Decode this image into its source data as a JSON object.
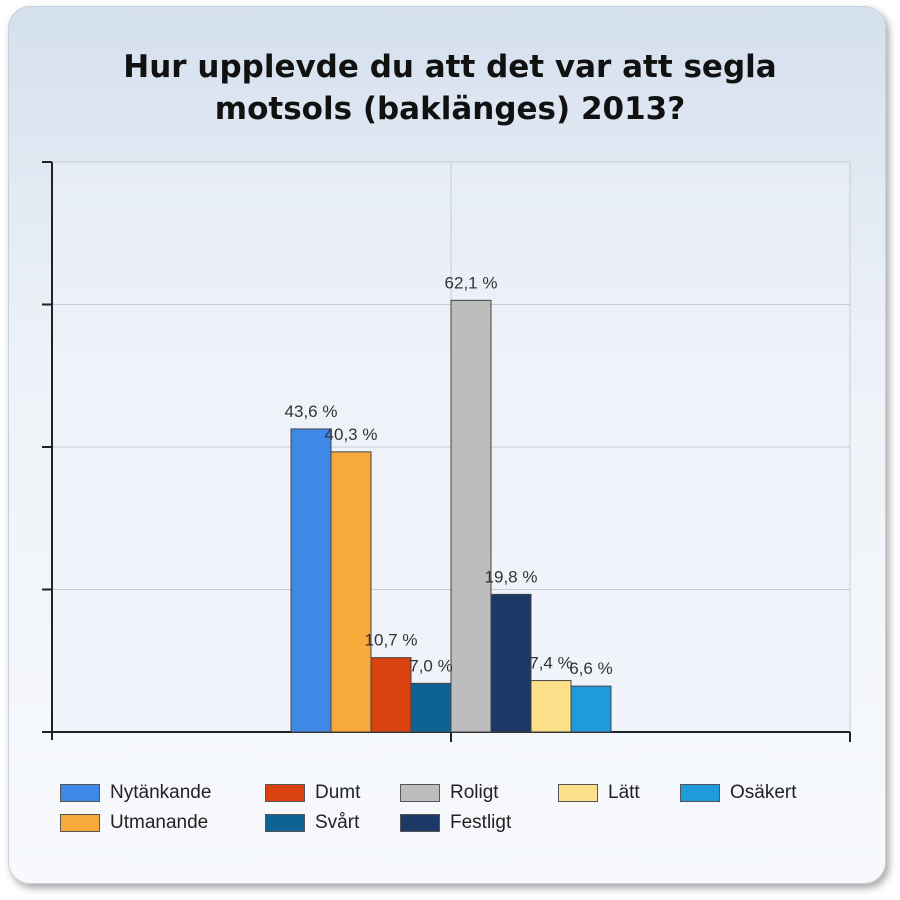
{
  "chart_data": {
    "type": "bar",
    "title": "Hur upplevde du att det var att segla motsols (baklänges) 2013?",
    "title_lines": [
      "Hur upplevde du att det var att segla",
      "motsols (baklänges) 2013?"
    ],
    "xlabel": "",
    "ylabel": "",
    "ylim": [
      0,
      82
    ],
    "grid": true,
    "legend_position": "bottom",
    "series": [
      {
        "name": "Nytänkande",
        "value": 43.6,
        "label": "43,6 %",
        "color": "#3f88e8"
      },
      {
        "name": "Utmanande",
        "value": 40.3,
        "label": "40,3 %",
        "color": "#f7a93a"
      },
      {
        "name": "Dumt",
        "value": 10.7,
        "label": "10,7 %",
        "color": "#d9420f"
      },
      {
        "name": "Svårt",
        "value": 7.0,
        "label": "7,0 %",
        "color": "#0e6394"
      },
      {
        "name": "Roligt",
        "value": 62.1,
        "label": "62,1 %",
        "color": "#bdbdbd"
      },
      {
        "name": "Festligt",
        "value": 19.8,
        "label": "19,8 %",
        "color": "#1b3866"
      },
      {
        "name": "Lätt",
        "value": 7.4,
        "label": "7,4 %",
        "color": "#fde08a"
      },
      {
        "name": "Osäkert",
        "value": 6.6,
        "label": "6,6 %",
        "color": "#1f9bdc"
      }
    ]
  }
}
